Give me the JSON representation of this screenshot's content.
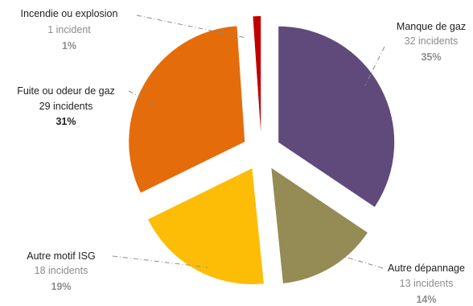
{
  "chart_data": {
    "type": "pie",
    "exploded": true,
    "start_angle_deg": 0,
    "direction": "clockwise",
    "slices": [
      {
        "name": "Manque de gaz",
        "count_label": "32 incidents",
        "pct_label": "35%",
        "value": 32,
        "color": "#5f4a7b",
        "label_style": "muted"
      },
      {
        "name": "Autre dépannage",
        "count_label": "13 incidents",
        "pct_label": "14%",
        "value": 13,
        "color": "#958b55",
        "label_style": "muted"
      },
      {
        "name": "Autre motif ISG",
        "count_label": "18 incidents",
        "pct_label": "19%",
        "value": 18,
        "color": "#fdbd06",
        "label_style": "muted"
      },
      {
        "name": "Fuite ou odeur de gaz",
        "count_label": "29 incidents",
        "pct_label": "31%",
        "value": 29,
        "color": "#e46c0a",
        "label_style": "dark"
      },
      {
        "name": "Incendie ou explosion",
        "count_label": "1 incident",
        "pct_label": "1%",
        "value": 1,
        "color": "#c00000",
        "label_style": "muted"
      }
    ]
  }
}
